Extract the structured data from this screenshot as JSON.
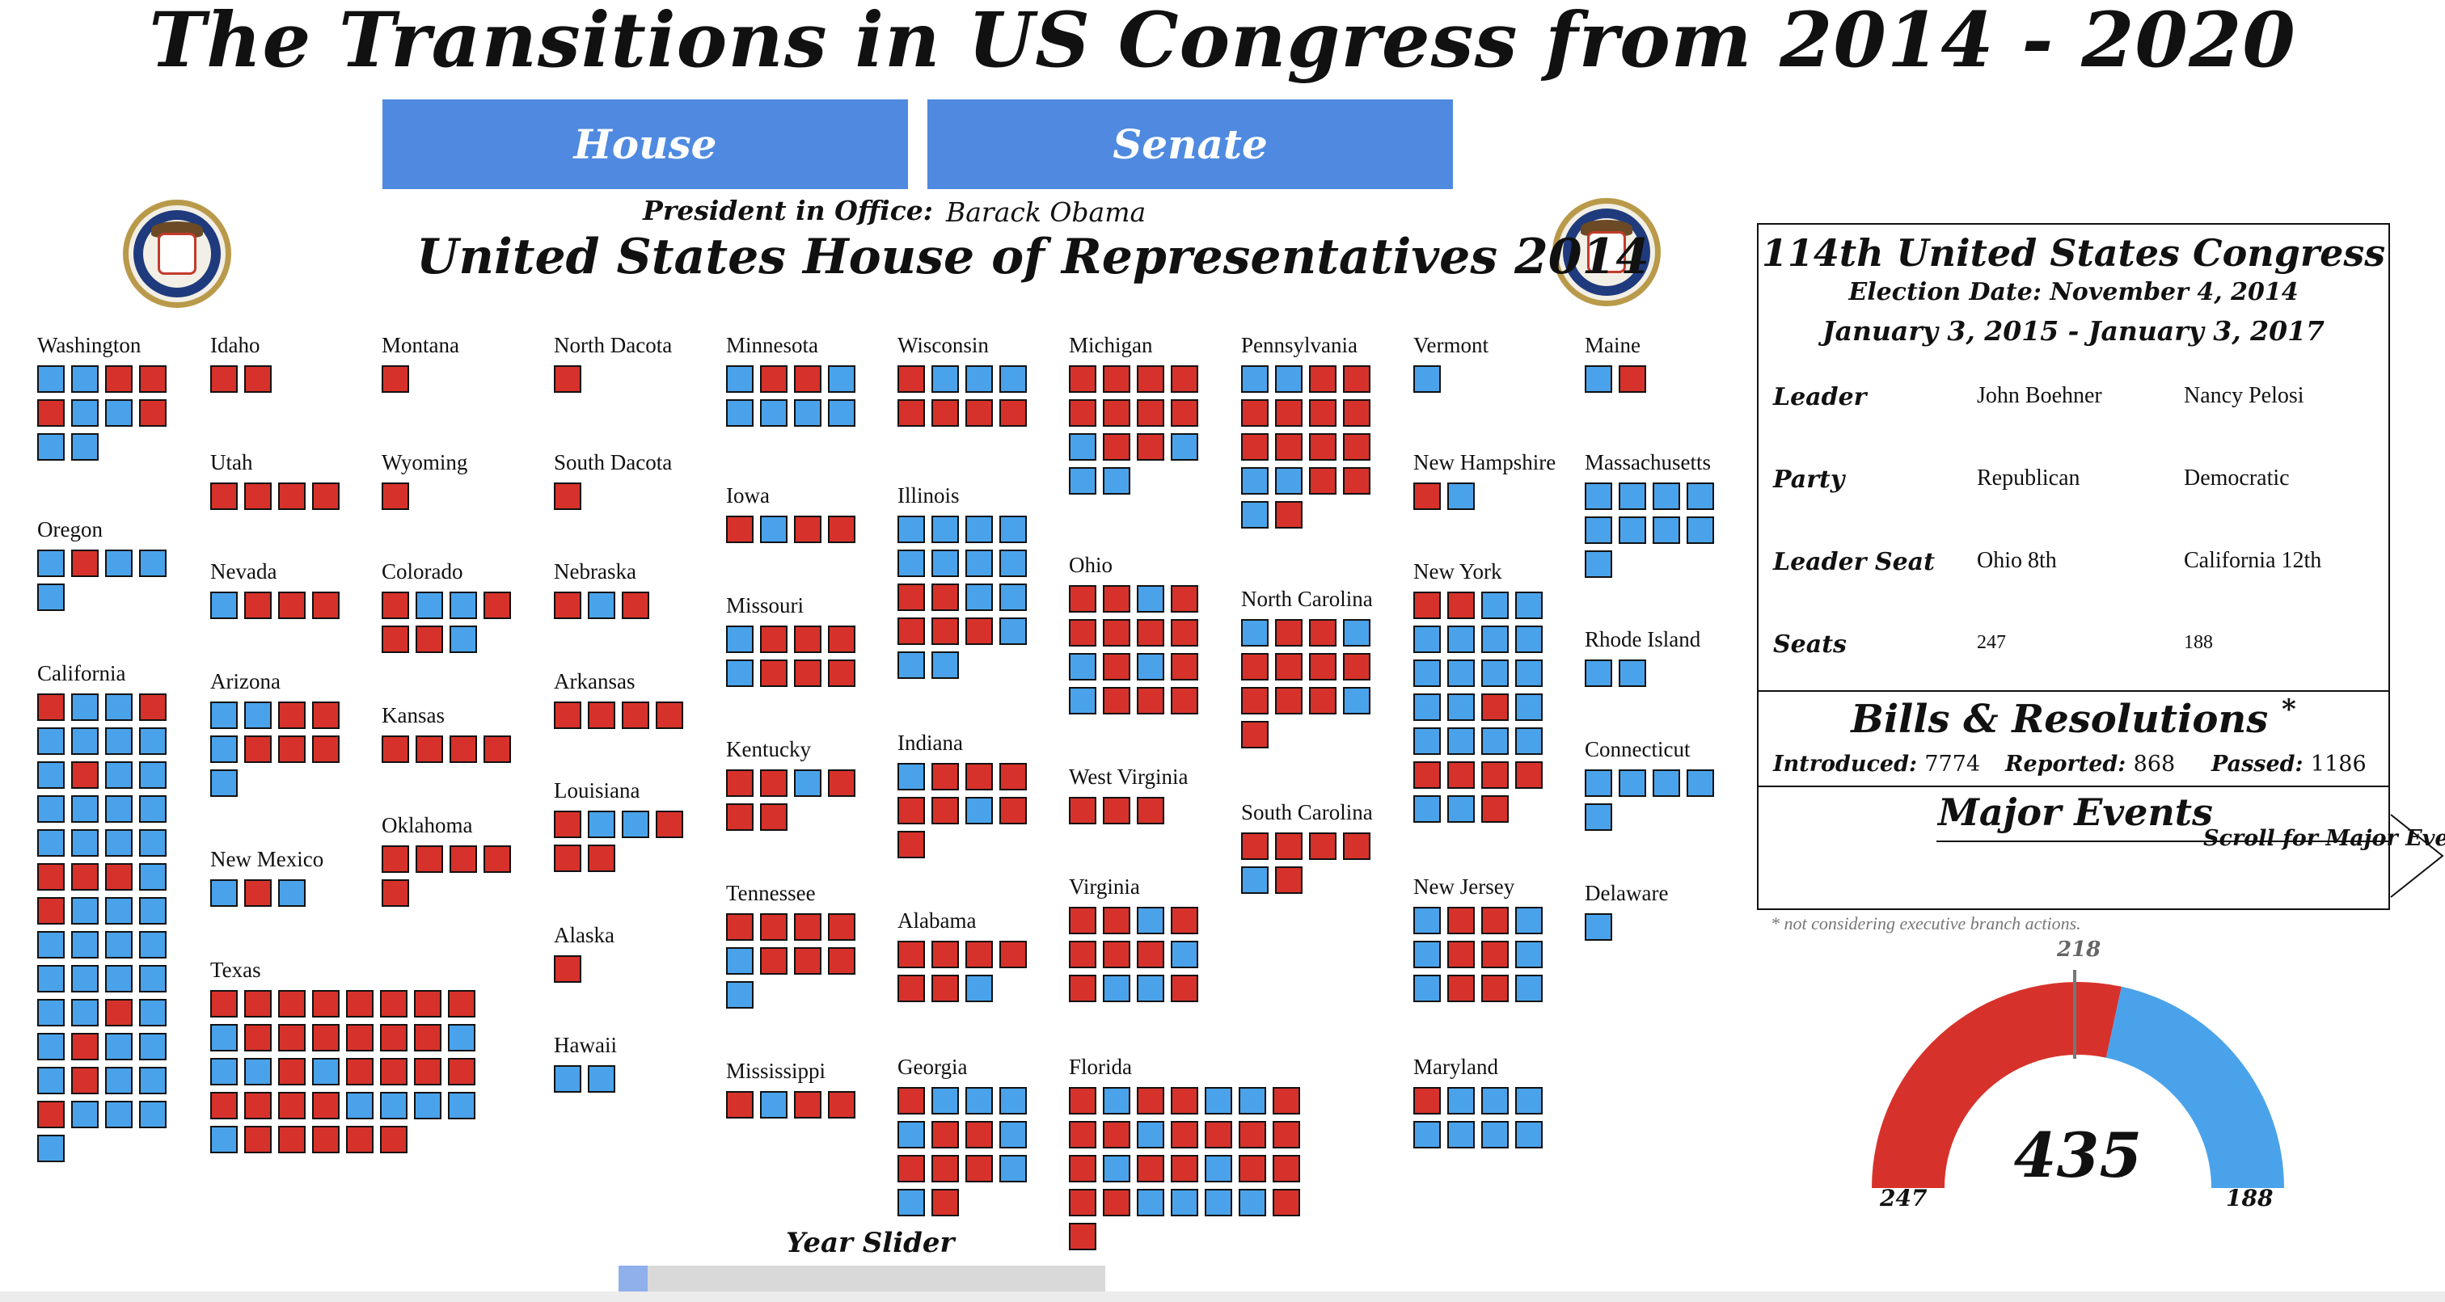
{
  "title": "The Transitions in US Congress from 2014 - 2020",
  "buttons": {
    "house": "House",
    "senate": "Senate"
  },
  "president_label": "President in Office:",
  "president": "Barack Obama",
  "house_title": "United States House of Representatives 2014",
  "slider": {
    "label": "Year Slider",
    "value_fraction": 0.0
  },
  "colors": {
    "republican": "#d6322b",
    "democratic": "#4aa3ea",
    "button": "#4f8ae0"
  },
  "states": [
    {
      "name": "Washington",
      "seats": "DDRRRDDRDD"
    },
    {
      "name": "Oregon",
      "seats": "DRDDD"
    },
    {
      "name": "California",
      "seats": "RDDRDDDDDRDDDDDDDDDDRRRDRDDDDDDDDDDDDDRDDRDDDRDDRDDDD"
    },
    {
      "name": "Idaho",
      "seats": "RR"
    },
    {
      "name": "Utah",
      "seats": "RRRR"
    },
    {
      "name": "Nevada",
      "seats": "DRRR"
    },
    {
      "name": "Arizona",
      "seats": "DDRRDRRRD"
    },
    {
      "name": "New Mexico",
      "seats": "DRD"
    },
    {
      "name": "Texas",
      "seats": "RRRRRRRRDRRRRRRDDDRDRRRRRRRRDDDDDRRRRR"
    },
    {
      "name": "Montana",
      "seats": "R"
    },
    {
      "name": "Wyoming",
      "seats": "R"
    },
    {
      "name": "Colorado",
      "seats": "RDDRRRD"
    },
    {
      "name": "Kansas",
      "seats": "RRRR"
    },
    {
      "name": "Oklahoma",
      "seats": "RRRRR"
    },
    {
      "name": "North Dacota",
      "seats": "R"
    },
    {
      "name": "South Dacota",
      "seats": "R"
    },
    {
      "name": "Nebraska",
      "seats": "RDR"
    },
    {
      "name": "Arkansas",
      "seats": "RRRR"
    },
    {
      "name": "Louisiana",
      "seats": "RDDRRR"
    },
    {
      "name": "Alaska",
      "seats": "R"
    },
    {
      "name": "Hawaii",
      "seats": "DD"
    },
    {
      "name": "Minnesota",
      "seats": "DRRDDDDD"
    },
    {
      "name": "Iowa",
      "seats": "RDRR"
    },
    {
      "name": "Missouri",
      "seats": "DRRRDRRR"
    },
    {
      "name": "Kentucky",
      "seats": "RRDRRR"
    },
    {
      "name": "Tennessee",
      "seats": "RRRRDRRRD"
    },
    {
      "name": "Mississippi",
      "seats": "RDRR"
    },
    {
      "name": "Wisconsin",
      "seats": "RDDDRRRR"
    },
    {
      "name": "Illinois",
      "seats": "DDDDDDDDRRDDRRRDDD"
    },
    {
      "name": "Indiana",
      "seats": "DRRRRRDRR"
    },
    {
      "name": "Alabama",
      "seats": "RRRRRRD"
    },
    {
      "name": "Georgia",
      "seats": "RDDDDRRDRRRDDR"
    },
    {
      "name": "Michigan",
      "seats": "RRRRRRRRDRRDDD"
    },
    {
      "name": "Ohio",
      "seats": "RRDRRRRRDRDRDRRR"
    },
    {
      "name": "West Virginia",
      "seats": "RRR"
    },
    {
      "name": "Virginia",
      "seats": "RRDRRRRDRDDR"
    },
    {
      "name": "Florida",
      "seats": "RDRRDDRRRDRRRRRDRRDRRRRDDDDRR"
    },
    {
      "name": "Pennsylvania",
      "seats": "DDRRRRRRRRRRDDRRDR"
    },
    {
      "name": "North Carolina",
      "seats": "DRRDRRRRRRRDR"
    },
    {
      "name": "South Carolina",
      "seats": "RRRRDR"
    },
    {
      "name": "Vermont",
      "seats": "D"
    },
    {
      "name": "New Hampshire",
      "seats": "RD"
    },
    {
      "name": "New York",
      "seats": "RRDDDDDDDDDDDDRDDDDDRRRRDDR"
    },
    {
      "name": "New Jersey",
      "seats": "DRRDDRRDDRRD"
    },
    {
      "name": "Maryland",
      "seats": "RDDDDDDD"
    },
    {
      "name": "Maine",
      "seats": "DR"
    },
    {
      "name": "Massachusetts",
      "seats": "DDDDDDDDD"
    },
    {
      "name": "Rhode Island",
      "seats": "DD"
    },
    {
      "name": "Connecticut",
      "seats": "DDDDD"
    },
    {
      "name": "Delaware",
      "seats": "D"
    }
  ],
  "info": {
    "congress_title": "114th United States Congress",
    "election_date": "Election Date: November 4, 2014",
    "term": "January 3, 2015 - January 3, 2017",
    "rows": [
      {
        "label": "Leader",
        "v1": "John Boehner",
        "v2": "Nancy Pelosi"
      },
      {
        "label": "Party",
        "v1": "Republican",
        "v2": "Democratic"
      },
      {
        "label": "Leader Seat",
        "v1": "Ohio 8th",
        "v2": "California 12th"
      },
      {
        "label": "Seats",
        "v1": "247",
        "v2": "188"
      }
    ],
    "bills_title": "Bills & Resolutions",
    "asterisk": "*",
    "bills": [
      {
        "label": "Introduced:",
        "value": "7774"
      },
      {
        "label": "Reported:",
        "value": "868"
      },
      {
        "label": "Passed:",
        "value": "1186"
      }
    ],
    "events_title": "Major Events",
    "events_scroll": "Scroll for Major Events",
    "footnote": "* not considering executive branch actions."
  },
  "gauge": {
    "total": "435",
    "republican": "247",
    "democratic": "188",
    "majority": "218",
    "republican_seats": 247,
    "democratic_seats": 188
  }
}
